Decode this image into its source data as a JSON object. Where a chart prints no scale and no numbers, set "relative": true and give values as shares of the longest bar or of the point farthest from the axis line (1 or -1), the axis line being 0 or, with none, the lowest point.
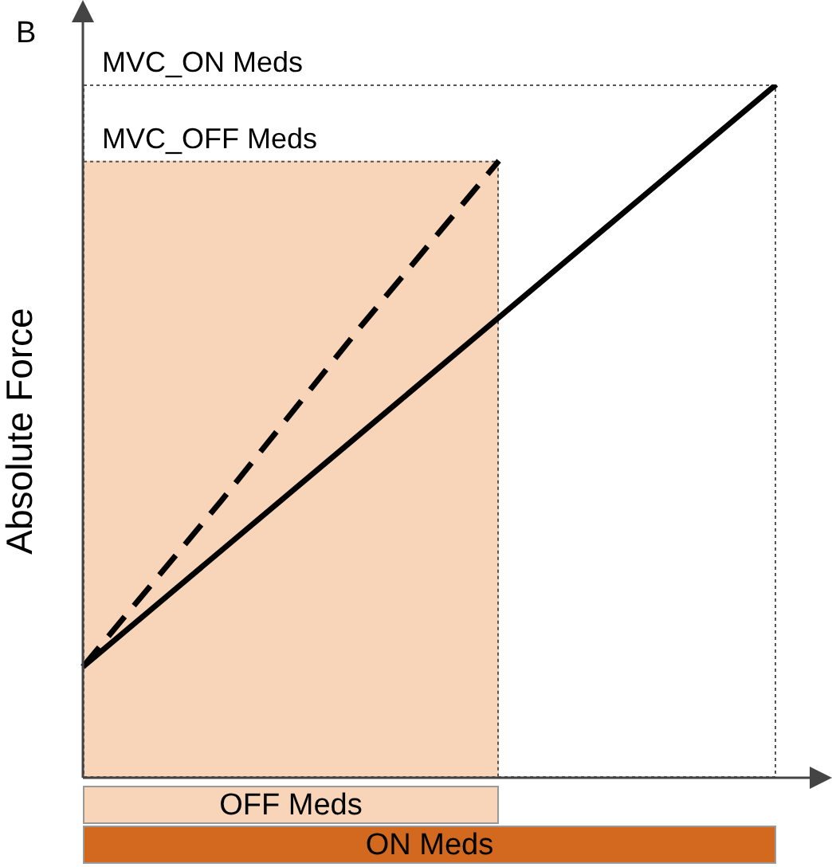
{
  "chart_data": {
    "type": "line",
    "title": "B",
    "ylabel": "Absolute Force",
    "relative": true,
    "legend": false,
    "grid": false,
    "marker": "none",
    "categories": [
      null,
      null,
      null,
      null,
      null,
      null
    ],
    "series": [
      {
        "values": [
          0.16,
          0.328,
          0.496,
          0.664,
          0.832,
          1
        ],
        "color": "#000000",
        "line_style": "solid"
      },
      {
        "values": [
          0.16,
          0.4,
          0.65,
          0.89,
          null,
          null
        ],
        "color": "#000000",
        "line_style": "dashed"
      }
    ],
    "annotations": [
      "MVC_ON Meds",
      "MVC_OFF Meds",
      "OFF Meds",
      "ON Meds"
    ]
  }
}
